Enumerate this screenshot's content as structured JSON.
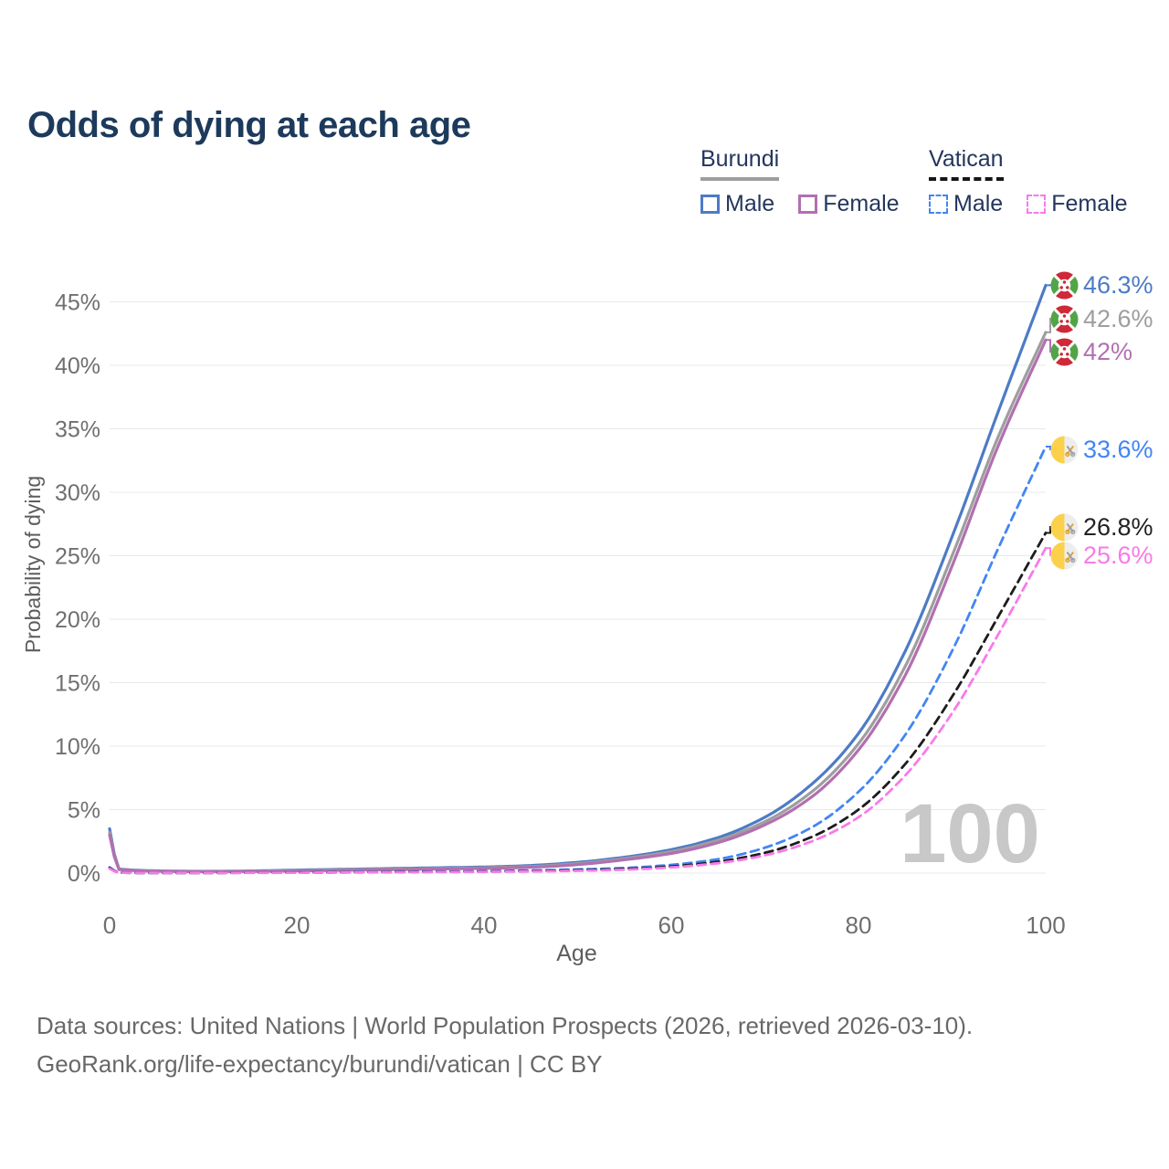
{
  "title": "Odds of dying at each age",
  "legend": {
    "groups": [
      {
        "name": "Burundi",
        "line_style": "solid",
        "total_color": "#9e9e9e",
        "items": [
          {
            "label": "Male",
            "color": "#4d7bc6"
          },
          {
            "label": "Female",
            "color": "#b26fb1"
          }
        ]
      },
      {
        "name": "Vatican",
        "line_style": "dashed",
        "total_color": "#1c1c1c",
        "items": [
          {
            "label": "Male",
            "color": "#4285f4"
          },
          {
            "label": "Female",
            "color": "#f97ae9"
          }
        ]
      }
    ]
  },
  "chart_data": {
    "type": "line",
    "title": "Odds of dying at each age",
    "xlabel": "Age",
    "ylabel": "Probability of dying",
    "xlim": [
      0,
      100
    ],
    "ylim": [
      0,
      47
    ],
    "xticks": [
      0,
      20,
      40,
      60,
      80,
      100
    ],
    "yticks": [
      0,
      5,
      10,
      15,
      20,
      25,
      30,
      35,
      40,
      45
    ],
    "ytick_format": "percent",
    "grid": "horizontal",
    "legend_position": "top-right",
    "watermark": "100",
    "x": [
      0,
      1,
      5,
      10,
      15,
      20,
      25,
      30,
      35,
      40,
      45,
      50,
      55,
      60,
      65,
      70,
      75,
      80,
      85,
      90,
      95,
      100
    ],
    "series": [
      {
        "name": "Burundi Male",
        "country": "Burundi",
        "sex": "Male",
        "style": "solid",
        "color": "#4d7bc6",
        "values": [
          3.5,
          0.32,
          0.18,
          0.14,
          0.17,
          0.24,
          0.3,
          0.36,
          0.42,
          0.48,
          0.6,
          0.85,
          1.25,
          1.85,
          2.8,
          4.4,
          7.0,
          11.0,
          17.5,
          26.5,
          36.5,
          46.3
        ]
      },
      {
        "name": "Burundi Both sexes",
        "country": "Burundi",
        "sex": "Both",
        "style": "solid",
        "color": "#9e9e9e",
        "values": [
          3.2,
          0.3,
          0.16,
          0.13,
          0.15,
          0.2,
          0.26,
          0.31,
          0.36,
          0.42,
          0.52,
          0.75,
          1.15,
          1.7,
          2.6,
          4.05,
          6.4,
          10.2,
          16.3,
          25.0,
          34.5,
          42.6
        ]
      },
      {
        "name": "Burundi Female",
        "country": "Burundi",
        "sex": "Female",
        "style": "solid",
        "color": "#b26fb1",
        "values": [
          3.0,
          0.28,
          0.15,
          0.12,
          0.13,
          0.17,
          0.22,
          0.27,
          0.32,
          0.37,
          0.46,
          0.67,
          1.05,
          1.55,
          2.4,
          3.8,
          6.0,
          9.7,
          15.6,
          24.2,
          33.8,
          42.0
        ]
      },
      {
        "name": "Vatican Male",
        "country": "Vatican",
        "sex": "Male",
        "style": "dashed",
        "color": "#4285f4",
        "values": [
          0.45,
          0.04,
          0.02,
          0.02,
          0.04,
          0.06,
          0.08,
          0.1,
          0.13,
          0.16,
          0.21,
          0.29,
          0.4,
          0.65,
          1.1,
          2.0,
          3.6,
          6.4,
          10.9,
          17.5,
          25.7,
          33.6
        ]
      },
      {
        "name": "Vatican Both sexes",
        "country": "Vatican",
        "sex": "Both",
        "style": "dashed",
        "color": "#1c1c1c",
        "values": [
          0.4,
          0.03,
          0.01,
          0.01,
          0.03,
          0.04,
          0.06,
          0.08,
          0.1,
          0.12,
          0.16,
          0.22,
          0.32,
          0.52,
          0.9,
          1.6,
          2.85,
          5.0,
          8.6,
          13.9,
          20.3,
          26.8
        ]
      },
      {
        "name": "Vatican Female",
        "country": "Vatican",
        "sex": "Female",
        "style": "dashed",
        "color": "#f97ae9",
        "values": [
          0.35,
          0.03,
          0.01,
          0.01,
          0.02,
          0.03,
          0.05,
          0.06,
          0.08,
          0.1,
          0.13,
          0.18,
          0.27,
          0.45,
          0.78,
          1.4,
          2.5,
          4.4,
          7.7,
          12.6,
          18.9,
          25.6
        ]
      }
    ]
  },
  "annotations": [
    {
      "flag": "burundi-flag-icon",
      "label": "46.3%",
      "color": "#4d7bc6"
    },
    {
      "flag": "burundi-flag-icon",
      "label": "42.6%",
      "color": "#9e9e9e"
    },
    {
      "flag": "burundi-flag-icon",
      "label": "42%",
      "color": "#b26fb1"
    },
    {
      "flag": "vatican-flag-icon",
      "label": "33.6%",
      "color": "#4285f4"
    },
    {
      "flag": "vatican-flag-icon",
      "label": "26.8%",
      "color": "#222222"
    },
    {
      "flag": "vatican-flag-icon",
      "label": "25.6%",
      "color": "#f97ae9"
    }
  ],
  "flag_colors": {
    "burundi_red": "#ce2939",
    "burundi_green": "#52a447",
    "vatican_yellow": "#fbd14b",
    "vatican_white": "#ededed",
    "vatican_key_gold": "#e0a32e",
    "vatican_key_silver": "#9aa0a6"
  },
  "footer": {
    "line1": "Data sources: United Nations | World Population Prospects (2026, retrieved 2026-03-10).",
    "line2": "GeoRank.org/life-expectancy/burundi/vatican | CC BY"
  }
}
